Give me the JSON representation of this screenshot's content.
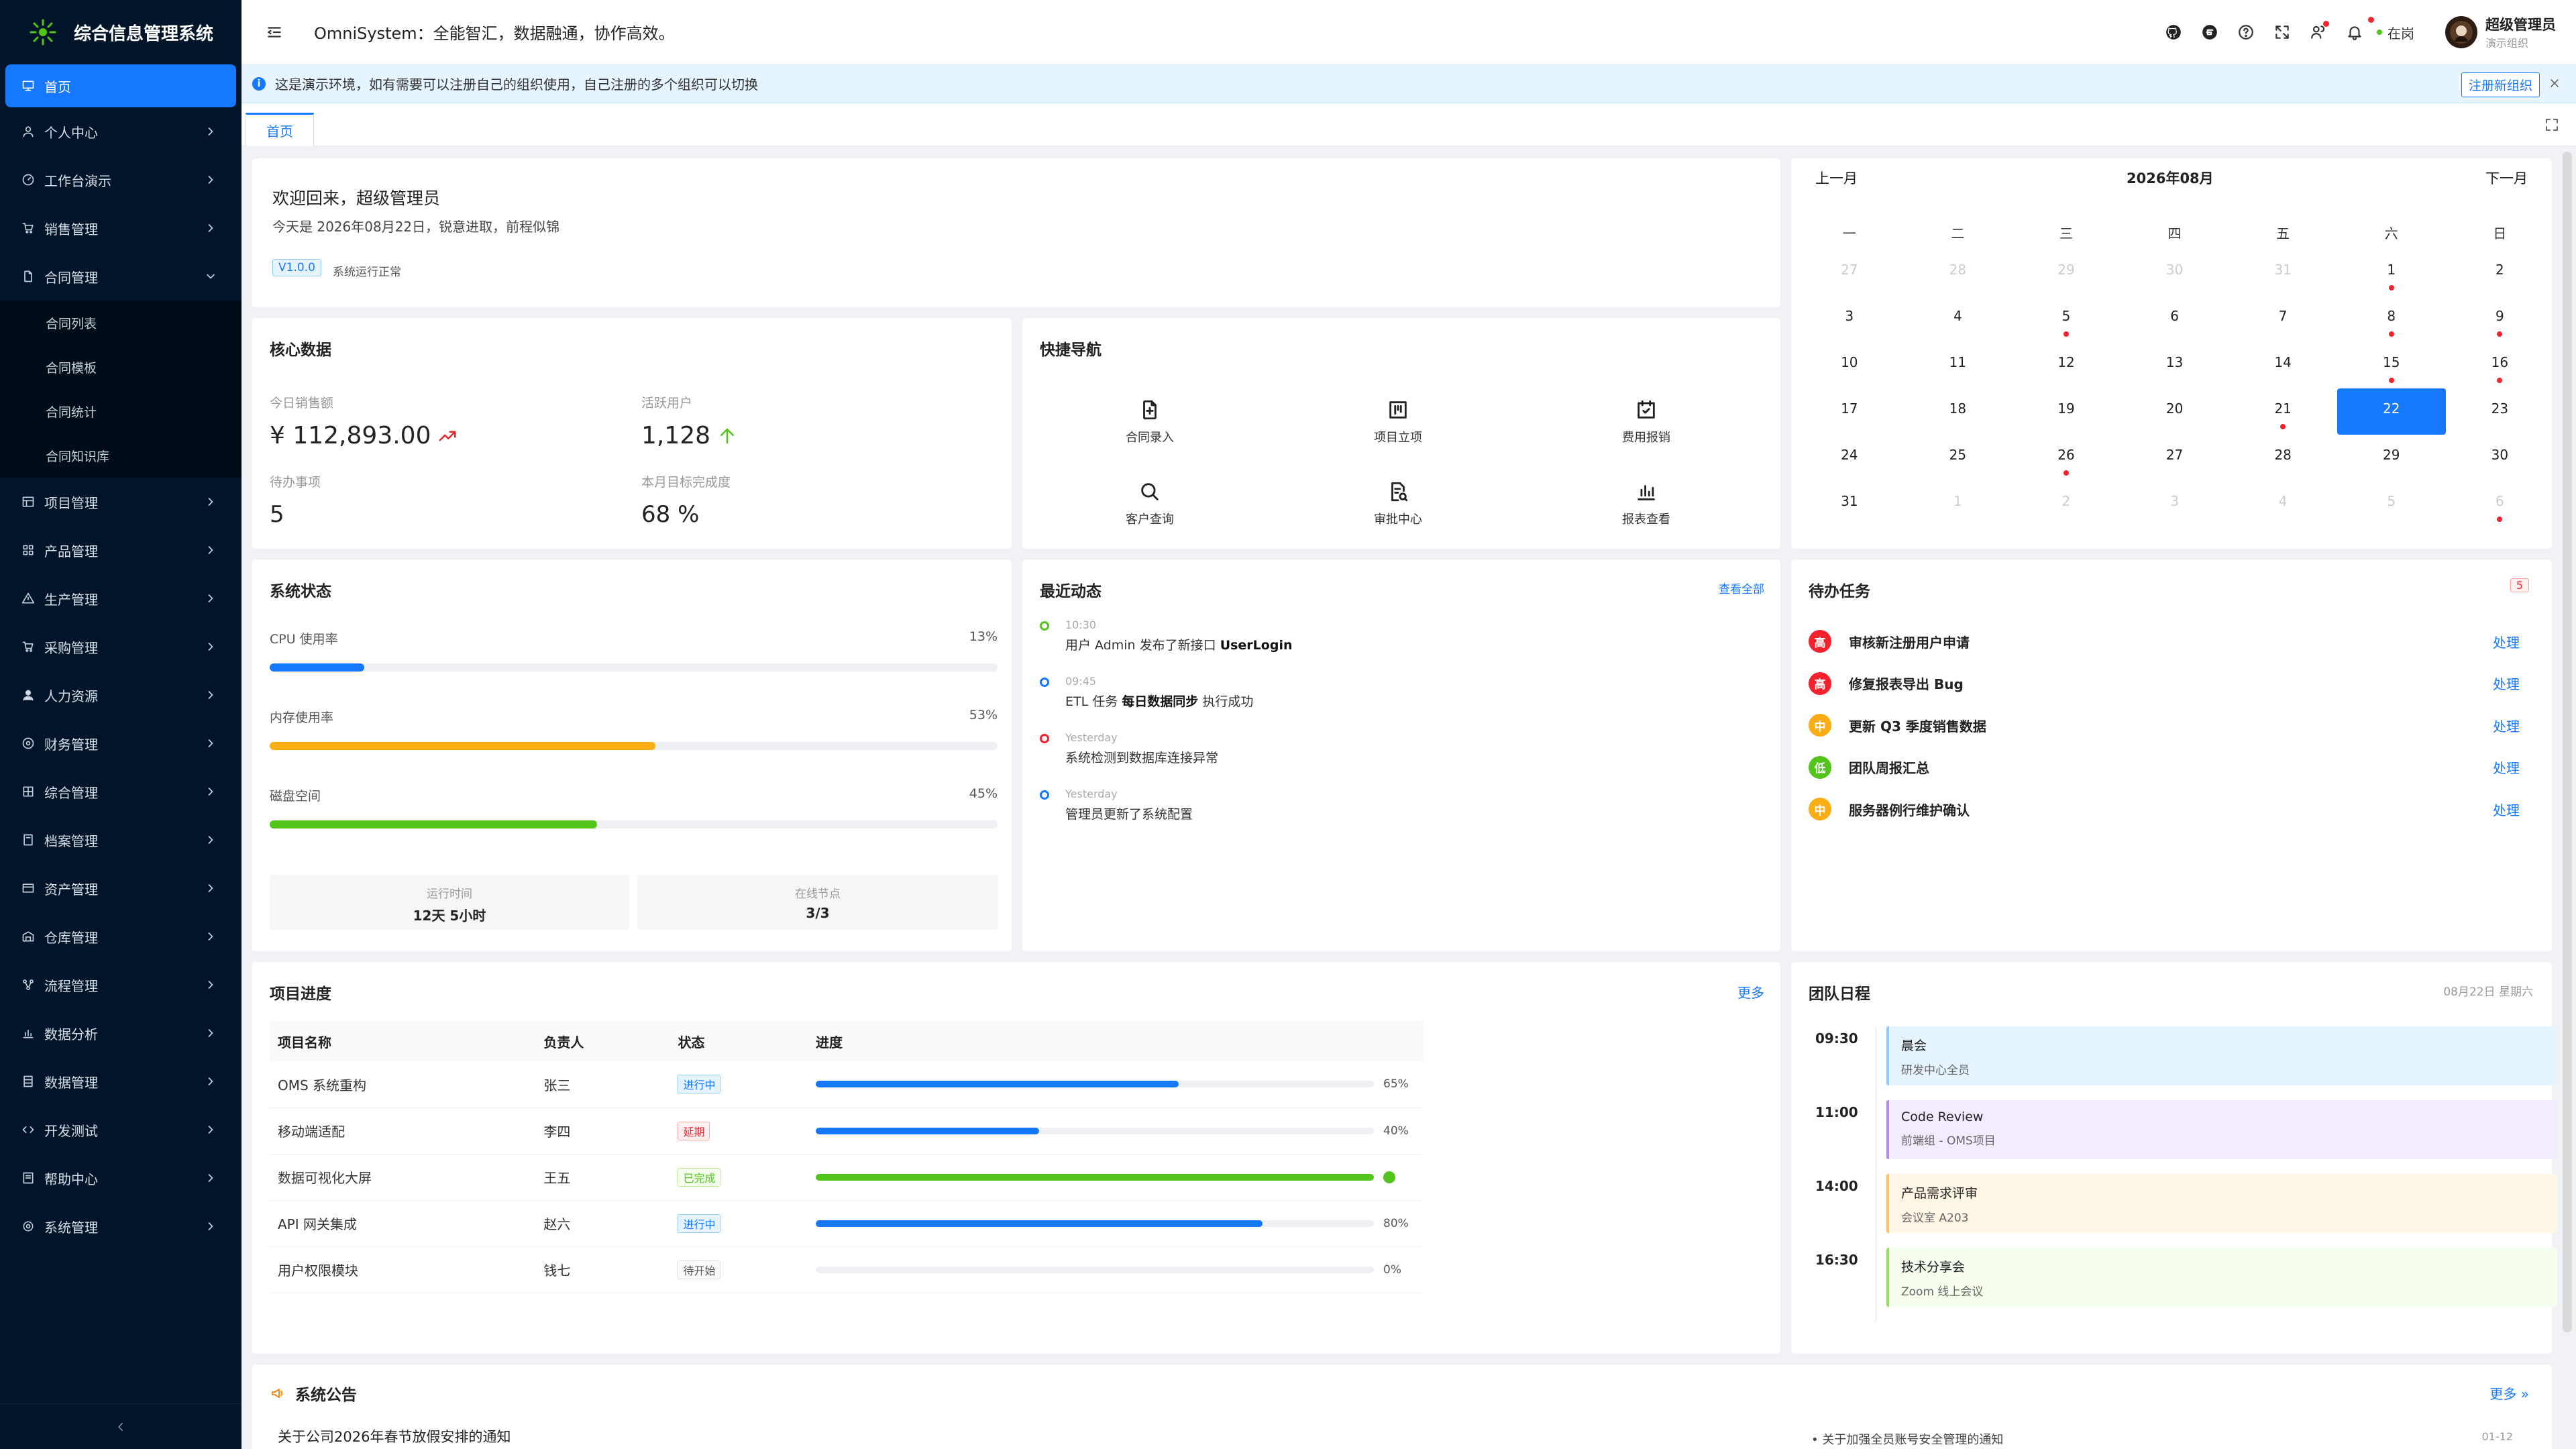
{
  "app": {
    "title": "综合信息管理系统",
    "slogan": "OmniSystem：全能智汇，数据融通，协作高效。"
  },
  "sidebar": {
    "items": [
      {
        "label": "首页",
        "icon": "monitor-icon"
      },
      {
        "label": "个人中心",
        "icon": "user-icon"
      },
      {
        "label": "工作台演示",
        "icon": "dashboard-icon"
      },
      {
        "label": "销售管理",
        "icon": "cart-icon"
      },
      {
        "label": "合同管理",
        "icon": "file-icon"
      },
      {
        "label": "项目管理",
        "icon": "table-icon"
      },
      {
        "label": "产品管理",
        "icon": "apps-icon"
      },
      {
        "label": "生产管理",
        "icon": "warning-icon"
      },
      {
        "label": "采购管理",
        "icon": "purchase-icon"
      },
      {
        "label": "人力资源",
        "icon": "team-icon"
      },
      {
        "label": "财务管理",
        "icon": "money-icon"
      },
      {
        "label": "综合管理",
        "icon": "grid-icon"
      },
      {
        "label": "档案管理",
        "icon": "archive-icon"
      },
      {
        "label": "资产管理",
        "icon": "asset-icon"
      },
      {
        "label": "仓库管理",
        "icon": "warehouse-icon"
      },
      {
        "label": "流程管理",
        "icon": "flow-icon"
      },
      {
        "label": "数据分析",
        "icon": "chart-icon"
      },
      {
        "label": "数据管理",
        "icon": "database-icon"
      },
      {
        "label": "开发测试",
        "icon": "code-icon"
      },
      {
        "label": "帮助中心",
        "icon": "help-icon"
      },
      {
        "label": "系统管理",
        "icon": "settings-icon"
      }
    ],
    "contract_sub": [
      "合同列表",
      "合同模板",
      "合同统计",
      "合同知识库"
    ]
  },
  "header": {
    "status": "在岗",
    "user_name": "超级管理员",
    "user_org": "演示组织"
  },
  "notice": {
    "text": "这是演示环境，如有需要可以注册自己的组织使用，自己注册的多个组织可以切换",
    "register": "注册新组织"
  },
  "tabs": [
    "首页"
  ],
  "welcome": {
    "greeting": "欢迎回来，超级管理员",
    "date_line": "今天是 2026年08月22日，锐意进取，前程似锦",
    "version": "V1.0.0",
    "sys_status": "系统运行正常"
  },
  "core": {
    "title": "核心数据",
    "kpis": [
      {
        "label": "今日销售额",
        "value": "¥ 112,893.00"
      },
      {
        "label": "活跃用户",
        "value": "1,128"
      },
      {
        "label": "待办事项",
        "value": "5"
      },
      {
        "label": "本月目标完成度",
        "value": "68 %"
      }
    ]
  },
  "quick": {
    "title": "快捷导航",
    "items": [
      "合同录入",
      "项目立项",
      "费用报销",
      "客户查询",
      "审批中心",
      "报表查看"
    ]
  },
  "calendar": {
    "prev": "上一月",
    "next": "下一月",
    "month": "2026年08月",
    "weekdays": [
      "一",
      "二",
      "三",
      "四",
      "五",
      "六",
      "日"
    ],
    "weeks": [
      [
        "27",
        "28",
        "29",
        "30",
        "31",
        "1",
        "2"
      ],
      [
        "3",
        "4",
        "5",
        "6",
        "7",
        "8",
        "9"
      ],
      [
        "10",
        "11",
        "12",
        "13",
        "14",
        "15",
        "16"
      ],
      [
        "17",
        "18",
        "19",
        "20",
        "21",
        "22",
        "23"
      ],
      [
        "24",
        "25",
        "26",
        "27",
        "28",
        "29",
        "30"
      ],
      [
        "31",
        "1",
        "2",
        "3",
        "4",
        "5",
        "6"
      ]
    ]
  },
  "system": {
    "title": "系统状态",
    "metrics": [
      {
        "label": "CPU 使用率",
        "value": "13%",
        "pct": 13,
        "color": "#1677ff"
      },
      {
        "label": "内存使用率",
        "value": "53%",
        "pct": 53,
        "color": "#faad14"
      },
      {
        "label": "磁盘空间",
        "value": "45%",
        "pct": 45,
        "color": "#52c41a"
      }
    ],
    "uptime_label": "运行时间",
    "uptime": "12天 5小时",
    "nodes_label": "在线节点",
    "nodes": "3/3"
  },
  "activity": {
    "title": "最近动态",
    "view_all": "查看全部",
    "items": [
      {
        "time": "10:30",
        "pre": "用户 Admin 发布了新接口 ",
        "bold": "UserLogin",
        "post": "",
        "color": "#52c41a"
      },
      {
        "time": "09:45",
        "pre": "ETL 任务 ",
        "bold": "每日数据同步",
        "post": " 执行成功",
        "color": "#1677ff"
      },
      {
        "time": "Yesterday",
        "pre": "系统检测到数据库连接异常",
        "bold": "",
        "post": "",
        "color": "#f5222d"
      },
      {
        "time": "Yesterday",
        "pre": "管理员更新了系统配置",
        "bold": "",
        "post": "",
        "color": "#1677ff"
      }
    ]
  },
  "todo": {
    "title": "待办任务",
    "count": "5",
    "action": "处理",
    "items": [
      {
        "level": "高",
        "color": "#f5222d",
        "text": "审核新注册用户申请"
      },
      {
        "level": "高",
        "color": "#f5222d",
        "text": "修复报表导出 Bug"
      },
      {
        "level": "中",
        "color": "#faad14",
        "text": "更新 Q3 季度销售数据"
      },
      {
        "level": "低",
        "color": "#52c41a",
        "text": "团队周报汇总"
      },
      {
        "level": "中",
        "color": "#faad14",
        "text": "服务器例行维护确认"
      }
    ]
  },
  "projects": {
    "title": "项目进度",
    "more": "更多",
    "headers": [
      "项目名称",
      "负责人",
      "状态",
      "进度"
    ],
    "rows": [
      {
        "name": "OMS 系统重构",
        "owner": "张三",
        "status": "进行中",
        "pct": 65,
        "pct_label": "65%"
      },
      {
        "name": "移动端适配",
        "owner": "李四",
        "status": "延期",
        "pct": 40,
        "pct_label": "40%"
      },
      {
        "name": "数据可视化大屏",
        "owner": "王五",
        "status": "已完成",
        "pct": 100,
        "pct_label": ""
      },
      {
        "name": "API 网关集成",
        "owner": "赵六",
        "status": "进行中",
        "pct": 80,
        "pct_label": "80%"
      },
      {
        "name": "用户权限模块",
        "owner": "钱七",
        "status": "待开始",
        "pct": 0,
        "pct_label": "0%"
      }
    ]
  },
  "schedule": {
    "title": "团队日程",
    "date": "08月22日 星期六",
    "items": [
      {
        "time": "09:30",
        "title": "晨会",
        "desc": "研发中心全员",
        "bg": "#e6f4ff",
        "bar": "#91caff"
      },
      {
        "time": "11:00",
        "title": "Code Review",
        "desc": "前端组 - OMS项目",
        "bg": "#f3ebff",
        "bar": "#b18cf0"
      },
      {
        "time": "14:00",
        "title": "产品需求评审",
        "desc": "会议室 A203",
        "bg": "#fff7e6",
        "bar": "#ffc069"
      },
      {
        "time": "16:30",
        "title": "技术分享会",
        "desc": "Zoom 线上会议",
        "bg": "#f6ffed",
        "bar": "#95de64"
      }
    ]
  },
  "announce": {
    "title": "系统公告",
    "more": "更多 »",
    "items": [
      {
        "title": "关于公司2026年春节放假安排的通知",
        "date": ""
      },
      {
        "title": "关于加强全员账号安全管理的通知",
        "date": "01-12"
      }
    ]
  }
}
